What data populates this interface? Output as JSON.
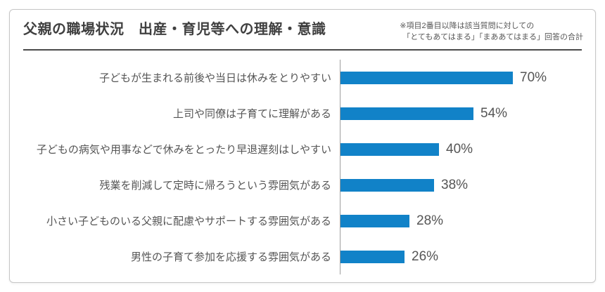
{
  "header": {
    "title": "父親の職場状況　出産・育児等への理解・意識",
    "note_line1": "※項目2番目以降は該当質問に対しての",
    "note_line2": "「とてもあてはまる」「まああてはまる」回答の合計"
  },
  "chart_data": {
    "type": "bar",
    "orientation": "horizontal",
    "title": "父親の職場状況　出産・育児等への理解・意識",
    "categories": [
      "子どもが生まれる前後や当日は休みをとりやすい",
      "上司や同僚は子育てに理解がある",
      "子どもの病気や用事などで休みをとったり早退遅刻はしやすい",
      "残業を削減して定時に帰ろうという雰囲気がある",
      "小さい子どものいる父親に配慮やサポートする雰囲気がある",
      "男性の子育て参加を応援する雰囲気がある"
    ],
    "values": [
      70,
      54,
      40,
      38,
      28,
      26
    ],
    "display_values": [
      "70%",
      "54%",
      "40%",
      "38%",
      "28%",
      "26%"
    ],
    "value_suffix": "%",
    "xlim": [
      0,
      100
    ],
    "grid": false,
    "legend": false,
    "bar_color": "#1182c8",
    "axis_line_color": "#9e9e9e",
    "text_color": "#555555"
  }
}
